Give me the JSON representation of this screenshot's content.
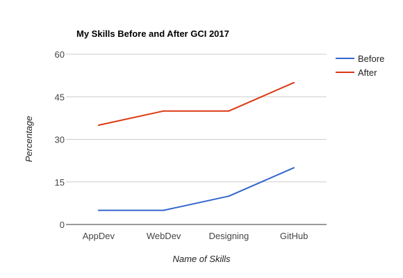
{
  "chart_data": {
    "type": "line",
    "title": "My Skills Before and After GCI 2017",
    "xlabel": "Name of Skills",
    "ylabel": "Percentage",
    "categories": [
      "AppDev",
      "WebDev",
      "Designing",
      "GitHub"
    ],
    "series": [
      {
        "name": "Before",
        "color": "#3366cc",
        "values": [
          5,
          5,
          10,
          20
        ]
      },
      {
        "name": "After",
        "color": "#dc3912",
        "values": [
          35,
          40,
          40,
          50
        ]
      }
    ],
    "ylim": [
      0,
      60
    ],
    "yticks": [
      "0",
      "15",
      "30",
      "45",
      "60"
    ],
    "grid": true,
    "legend_position": "right"
  }
}
